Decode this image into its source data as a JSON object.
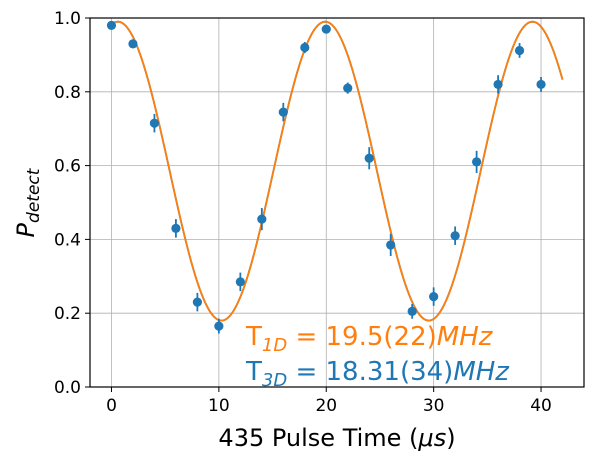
{
  "chart_data": {
    "type": "scatter",
    "xlabel_main": "435 Pulse Time (",
    "xlabel_unit": "μs",
    "xlabel_close": ")",
    "ylabel_main": "P",
    "ylabel_sub": "detect",
    "xlim": [
      -2,
      44
    ],
    "ylim": [
      0.0,
      1.0
    ],
    "xticks": [
      0,
      10,
      20,
      30,
      40
    ],
    "yticks": [
      0.0,
      0.2,
      0.4,
      0.6,
      0.8,
      1.0
    ],
    "ytick_labels": [
      "0.0",
      "0.2",
      "0.4",
      "0.6",
      "0.8",
      "1.0"
    ],
    "grid": true,
    "colors": {
      "data": "#1f77b4",
      "fit_1d": "#ff7f0e",
      "fit_3d": "#1f77b4"
    },
    "series": [
      {
        "kind": "points_with_errorbars",
        "x": [
          0,
          2,
          4,
          6,
          8,
          10,
          12,
          14,
          16,
          18,
          20,
          22,
          24,
          26,
          28,
          30,
          32,
          34,
          36,
          38,
          40
        ],
        "y": [
          0.98,
          0.93,
          0.715,
          0.43,
          0.23,
          0.165,
          0.285,
          0.455,
          0.745,
          0.92,
          0.97,
          0.81,
          0.62,
          0.385,
          0.205,
          0.245,
          0.41,
          0.61,
          0.82,
          0.912,
          0.82
        ],
        "yerr": [
          0.01,
          0.012,
          0.025,
          0.025,
          0.025,
          0.02,
          0.025,
          0.03,
          0.025,
          0.015,
          0.01,
          0.015,
          0.03,
          0.03,
          0.02,
          0.025,
          0.025,
          0.03,
          0.025,
          0.02,
          0.02
        ]
      },
      {
        "kind": "fit_curve",
        "model": {
          "x_start": 0,
          "x_end": 42,
          "center": 0.585,
          "amplitude": 0.405,
          "period": 19.3,
          "phase_shift": 0.6
        }
      }
    ],
    "annotations": [
      {
        "prefix": "T",
        "sub": "1D",
        "eq": " = 19.5(22)",
        "unit": "MHz"
      },
      {
        "prefix": "T",
        "sub": "3D",
        "eq": " = 18.31(34)",
        "unit": "MHz"
      }
    ]
  }
}
